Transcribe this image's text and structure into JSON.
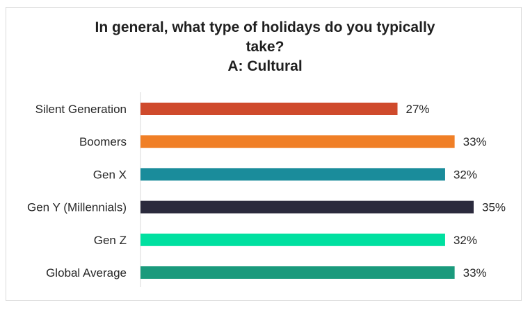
{
  "chart_data": {
    "type": "bar",
    "orientation": "horizontal",
    "title_lines": [
      "In general, what type of holidays do you typically",
      "take?",
      "A: Cultural"
    ],
    "categories": [
      "Silent Generation",
      "Boomers",
      "Gen X",
      "Gen Y (Millennials)",
      "Gen Z",
      "Global Average"
    ],
    "values": [
      27,
      33,
      32,
      35,
      32,
      33
    ],
    "value_labels": [
      "27%",
      "33%",
      "32%",
      "35%",
      "32%",
      "33%"
    ],
    "value_unit": "%",
    "colors": [
      "#cf4a2c",
      "#f07f26",
      "#1a8c9b",
      "#2b2a3d",
      "#00e0a0",
      "#1a9a7c"
    ],
    "xlim": [
      0,
      35
    ],
    "grid": false,
    "legend": "none"
  }
}
